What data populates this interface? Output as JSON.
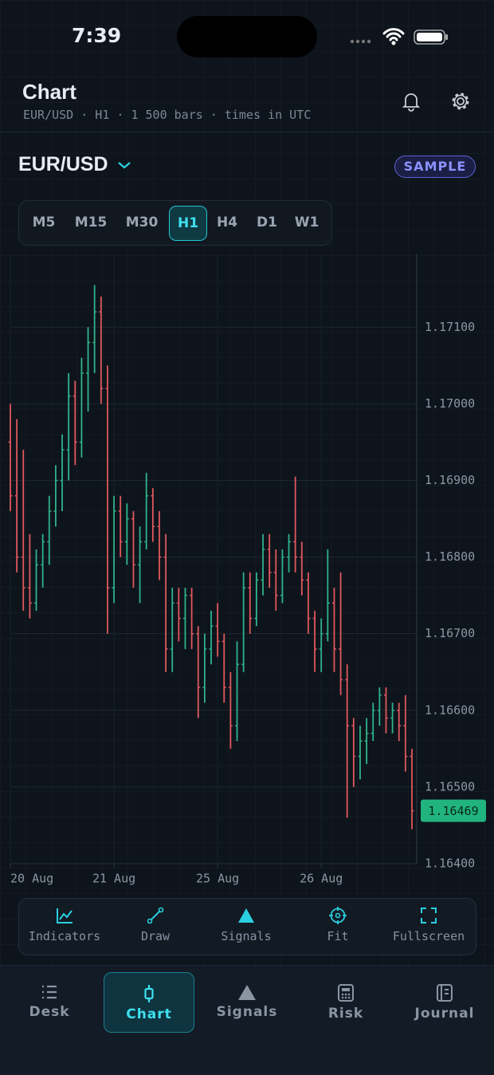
{
  "status_bar": {
    "time": "7:39"
  },
  "header": {
    "title": "Chart",
    "subtitle": "EUR/USD · H1 · 1 500 bars · times in UTC"
  },
  "symbol": "EUR/USD",
  "badge": "SAMPLE",
  "timeframes": [
    "M5",
    "M15",
    "M30",
    "H1",
    "H4",
    "D1",
    "W1"
  ],
  "chart_data": {
    "type": "ohlc",
    "categories": [
      "20 Aug",
      null,
      null,
      null,
      null,
      null,
      null,
      null,
      null,
      null,
      null,
      null,
      null,
      null,
      null,
      null,
      "21 Aug",
      null,
      null,
      null,
      null,
      null,
      null,
      null,
      null,
      null,
      null,
      null,
      null,
      null,
      null,
      null,
      "25 Aug",
      null,
      null,
      null,
      null,
      null,
      null,
      null,
      null,
      null,
      null,
      null,
      null,
      null,
      null,
      null,
      "26 Aug",
      null,
      null,
      null,
      null,
      null,
      null,
      null,
      null,
      null,
      null,
      null,
      null,
      null,
      null
    ],
    "open": [
      1.1695,
      1.1688,
      1.168,
      1.1676,
      1.1674,
      1.1679,
      1.1682,
      1.1686,
      1.169,
      1.1694,
      1.1701,
      1.1695,
      1.1704,
      1.1708,
      1.1712,
      1.1702,
      1.1676,
      1.1686,
      1.1682,
      1.1685,
      1.1679,
      1.1682,
      1.1688,
      1.1684,
      1.168,
      1.1668,
      1.1674,
      1.1672,
      1.1675,
      1.167,
      1.1663,
      1.1668,
      1.1671,
      1.1669,
      1.1663,
      1.1658,
      1.1666,
      1.1676,
      1.1672,
      1.1677,
      1.1681,
      1.1678,
      1.1675,
      1.168,
      1.1682,
      1.168,
      1.1677,
      1.1672,
      1.1668,
      1.167,
      1.1674,
      1.1668,
      1.1664,
      1.1658,
      1.1654,
      1.1656,
      1.1657,
      1.166,
      1.1662,
      1.1659,
      1.166,
      1.1658,
      1.1654
    ],
    "high": [
      1.17,
      1.1698,
      1.1694,
      1.1683,
      1.1681,
      1.1683,
      1.1688,
      1.1692,
      1.1696,
      1.1704,
      1.1703,
      1.1706,
      1.171,
      1.17155,
      1.1714,
      1.1705,
      1.1688,
      1.1688,
      1.1687,
      1.1686,
      1.1684,
      1.1691,
      1.1689,
      1.1686,
      1.1683,
      1.1676,
      1.1676,
      1.1676,
      1.1676,
      1.1671,
      1.167,
      1.1673,
      1.1674,
      1.167,
      1.1665,
      1.1669,
      1.1678,
      1.1678,
      1.1678,
      1.1683,
      1.1683,
      1.1681,
      1.1681,
      1.1683,
      1.16905,
      1.1682,
      1.1678,
      1.1673,
      1.1672,
      1.1681,
      1.1676,
      1.1678,
      1.1666,
      1.1659,
      1.1658,
      1.1659,
      1.1661,
      1.1663,
      1.1663,
      1.1661,
      1.1661,
      1.1662,
      1.1655
    ],
    "low": [
      1.1686,
      1.1678,
      1.1673,
      1.1672,
      1.1673,
      1.1676,
      1.1679,
      1.1684,
      1.1686,
      1.169,
      1.1692,
      1.1693,
      1.1699,
      1.1704,
      1.17,
      1.167,
      1.1674,
      1.168,
      1.1679,
      1.1676,
      1.1674,
      1.1681,
      1.1682,
      1.1677,
      1.1665,
      1.1665,
      1.1669,
      1.1668,
      1.1668,
      1.1659,
      1.1661,
      1.1666,
      1.1667,
      1.1661,
      1.1655,
      1.1656,
      1.1665,
      1.167,
      1.1671,
      1.1675,
      1.1676,
      1.1673,
      1.1674,
      1.1678,
      1.1678,
      1.1675,
      1.167,
      1.1665,
      1.1665,
      1.1669,
      1.1665,
      1.1662,
      1.1646,
      1.165,
      1.1651,
      1.1653,
      1.1656,
      1.1658,
      1.1657,
      1.1657,
      1.1656,
      1.1652,
      1.16445
    ],
    "close": [
      1.1688,
      1.168,
      1.1676,
      1.1674,
      1.1679,
      1.1682,
      1.1686,
      1.169,
      1.1694,
      1.1701,
      1.1695,
      1.1704,
      1.1708,
      1.1712,
      1.1702,
      1.1676,
      1.1686,
      1.1682,
      1.1685,
      1.1679,
      1.1682,
      1.1688,
      1.1684,
      1.168,
      1.1668,
      1.1674,
      1.1672,
      1.1675,
      1.167,
      1.1663,
      1.1668,
      1.1671,
      1.1669,
      1.1663,
      1.1658,
      1.1666,
      1.1676,
      1.1672,
      1.1677,
      1.1681,
      1.1678,
      1.1675,
      1.168,
      1.1682,
      1.168,
      1.1677,
      1.1672,
      1.1668,
      1.167,
      1.1674,
      1.1668,
      1.1664,
      1.1658,
      1.1654,
      1.1656,
      1.1657,
      1.166,
      1.1662,
      1.1659,
      1.166,
      1.1658,
      1.1654,
      1.16469
    ],
    "up_color": "#2fb38a",
    "down_color": "#e0585c",
    "ylim": [
      1.164,
      1.17196
    ],
    "yticks": [
      {
        "value": 1.164,
        "label": "1.16400"
      },
      {
        "value": 1.165,
        "label": "1.16500"
      },
      {
        "value": 1.166,
        "label": "1.16600"
      },
      {
        "value": 1.167,
        "label": "1.16700"
      },
      {
        "value": 1.168,
        "label": "1.16800"
      },
      {
        "value": 1.169,
        "label": "1.16900"
      },
      {
        "value": 1.17,
        "label": "1.17000"
      },
      {
        "value": 1.171,
        "label": "1.17100"
      }
    ],
    "grid": true
  },
  "toolbar": [
    "Indicators",
    "Draw",
    "Signals",
    "Fit",
    "Fullscreen"
  ],
  "tabs": [
    "Desk",
    "Chart",
    "Signals",
    "Risk",
    "Journal"
  ]
}
